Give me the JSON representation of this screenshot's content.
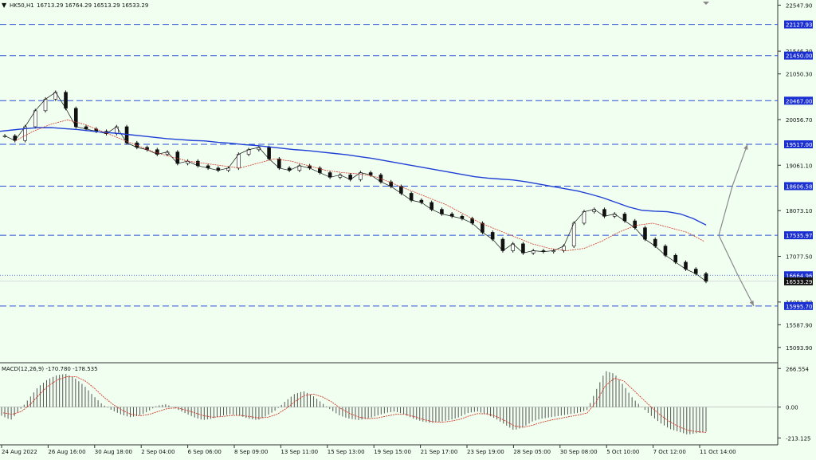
{
  "header": {
    "symbol": "HK50,H1",
    "ohlc": "16713.29 16764.29 16513.29 16533.29"
  },
  "macd_header": "MACD(12,26,9) -170.780 -178.535",
  "colors": {
    "background": "#f0fff0",
    "candle": "#111111",
    "ma_slow": "#1f3fd6",
    "ma_fast": "#d43a2a",
    "level_line": "#2a4fd6",
    "level_tag_bg": "#1a2fd1",
    "last_price_bg": "#111111",
    "arrow": "#8a8a8a",
    "macd_hist": "#555555",
    "macd_signal": "#d43a2a"
  },
  "price_axis": {
    "ticks": [
      "22547.90",
      "21546.30",
      "21050.30",
      "20056.70",
      "19061.10",
      "18073.10",
      "17077.50",
      "16081.90",
      "15587.90",
      "15093.90"
    ],
    "ymax": 22660,
    "ymin": 14760
  },
  "levels": [
    {
      "label": "22127.93",
      "value": 22127.93
    },
    {
      "label": "21450.00",
      "value": 21450.0
    },
    {
      "label": "20467.00",
      "value": 20467.0
    },
    {
      "label": "19517.00",
      "value": 19517.0
    },
    {
      "label": "18606.58",
      "value": 18606.58
    },
    {
      "label": "17535.97",
      "value": 17535.97
    },
    {
      "label": "15995.70",
      "value": 15995.7
    }
  ],
  "bid_level": {
    "label": "16664.96",
    "value": 16664.96
  },
  "last_price": {
    "label": "16533.29",
    "value": 16533.29
  },
  "macd_axis": {
    "ticks": [
      "266.554",
      "0.00",
      "-213.125"
    ],
    "ymax": 290,
    "ymin": -250
  },
  "time_axis": [
    "24 Aug 2022",
    "26 Aug 16:00",
    "30 Aug 18:00",
    "2 Sep 04:00",
    "6 Sep 06:00",
    "8 Sep 09:00",
    "13 Sep 11:00",
    "15 Sep 13:00",
    "19 Sep 15:00",
    "21 Sep 17:00",
    "23 Sep 19:00",
    "28 Sep 05:00",
    "30 Sep 08:00",
    "5 Oct 10:00",
    "7 Oct 12:00",
    "11 Oct 14:00"
  ],
  "chart_data": {
    "type": "line",
    "title": "HK50,H1",
    "x_range": [
      "24 Aug 2022",
      "11 Oct 14:00"
    ],
    "ylim": [
      15093.9,
      22547.9
    ],
    "series": [
      {
        "name": "HK50,H1",
        "values": [
          19700,
          19600,
          19900,
          20250,
          20500,
          20650,
          20300,
          19900,
          19850,
          19800,
          19750,
          19900,
          19550,
          19450,
          19400,
          19300,
          19350,
          19100,
          19150,
          19050,
          19000,
          18950,
          19000,
          19300,
          19400,
          19450,
          19200,
          19000,
          18950,
          19050,
          19000,
          18900,
          18800,
          18850,
          18750,
          18900,
          18850,
          18700,
          18600,
          18450,
          18300,
          18250,
          18100,
          18000,
          17950,
          17900,
          17800,
          17600,
          17450,
          17200,
          17350,
          17150,
          17200,
          17180,
          17200,
          17300,
          17800,
          18050,
          18100,
          17950,
          18000,
          17850,
          17700,
          17450,
          17300,
          17100,
          16950,
          16800,
          16700,
          16533
        ]
      },
      {
        "values": [
          19800,
          19830,
          19860,
          19880,
          19880,
          19860,
          19840,
          19810,
          19780,
          19760,
          19730,
          19700,
          19670,
          19640,
          19620,
          19600,
          19590,
          19560,
          19540,
          19510,
          19490,
          19460,
          19430,
          19400,
          19380,
          19350,
          19320,
          19290,
          19250,
          19210,
          19160,
          19110,
          19060,
          19010,
          18960,
          18910,
          18860,
          18810,
          18780,
          18760,
          18740,
          18700,
          18650,
          18600,
          18550,
          18500,
          18430,
          18350,
          18250,
          18150,
          18080,
          18060,
          18050,
          18000,
          17900,
          17760
        ]
      },
      {
        "values": [
          19600,
          19800,
          19950,
          20050,
          19950,
          19800,
          19650,
          19500,
          19350,
          19250,
          19150,
          19100,
          19050,
          19000,
          19100,
          19200,
          19150,
          19050,
          18950,
          18900,
          18870,
          18800,
          18650,
          18500,
          18350,
          18200,
          18000,
          17800,
          17650,
          17500,
          17350,
          17250,
          17200,
          17250,
          17400,
          17600,
          17750,
          17800,
          17700,
          17600,
          17400
        ]
      }
    ],
    "macd": {
      "ylim": [
        -213.125,
        266.554
      ],
      "histogram": [
        -60,
        -90,
        -20,
        60,
        140,
        190,
        220,
        230,
        200,
        150,
        80,
        20,
        -20,
        -50,
        -70,
        -60,
        -30,
        10,
        20,
        -10,
        -40,
        -70,
        -90,
        -80,
        -60,
        -50,
        -60,
        -80,
        -90,
        -60,
        -20,
        40,
        90,
        110,
        80,
        30,
        -20,
        -60,
        -80,
        -90,
        -80,
        -60,
        -40,
        -30,
        -50,
        -80,
        -100,
        -110,
        -100,
        -90,
        -70,
        -40,
        -30,
        -50,
        -80,
        -120,
        -160,
        -140,
        -100,
        -80,
        -70,
        -60,
        -50,
        -40,
        -20,
        120,
        250,
        230,
        150,
        60,
        0,
        -60,
        -110,
        -150,
        -170,
        -190,
        -180,
        -170
      ],
      "signal": [
        -40,
        -50,
        -30,
        20,
        90,
        150,
        190,
        210,
        210,
        180,
        130,
        70,
        20,
        -20,
        -50,
        -60,
        -50,
        -30,
        -10,
        -5,
        -20,
        -40,
        -60,
        -70,
        -65,
        -58,
        -57,
        -65,
        -75,
        -70,
        -50,
        -10,
        40,
        80,
        90,
        70,
        35,
        -10,
        -45,
        -70,
        -80,
        -75,
        -62,
        -50,
        -50,
        -65,
        -85,
        -100,
        -105,
        -98,
        -85,
        -62,
        -45,
        -47,
        -64,
        -95,
        -130,
        -140,
        -125,
        -105,
        -90,
        -78,
        -66,
        -55,
        -40,
        40,
        150,
        200,
        180,
        120,
        60,
        0,
        -55,
        -100,
        -135,
        -160,
        -170,
        -175
      ]
    }
  }
}
